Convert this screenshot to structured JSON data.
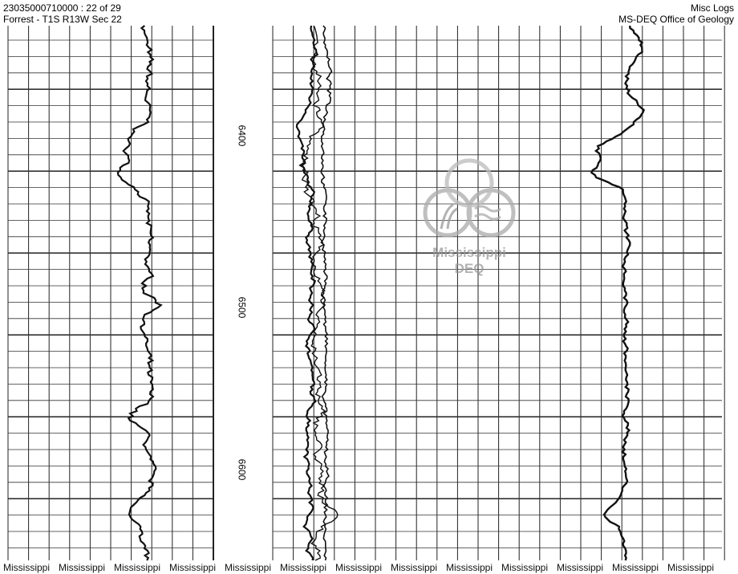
{
  "header": {
    "well_id_page": "23035000710000 : 22 of 29",
    "location": "Forrest - T1S R13W Sec 22",
    "log_type": "Misc Logs",
    "agency": "MS-DEQ Office of Geology"
  },
  "depth_labels": [
    "6400",
    "6500",
    "6600"
  ],
  "watermark": {
    "logo_line1": "Mississippi",
    "logo_line2": "DEQ",
    "footer_words": [
      "Mississippi",
      "Mississippi",
      "Mississippi",
      "Mississippi",
      "Mississippi",
      "Mississippi",
      "Mississippi",
      "Mississippi",
      "Mississippi",
      "Mississippi",
      "Mississippi",
      "Mississippi",
      "Mississippi"
    ]
  }
}
